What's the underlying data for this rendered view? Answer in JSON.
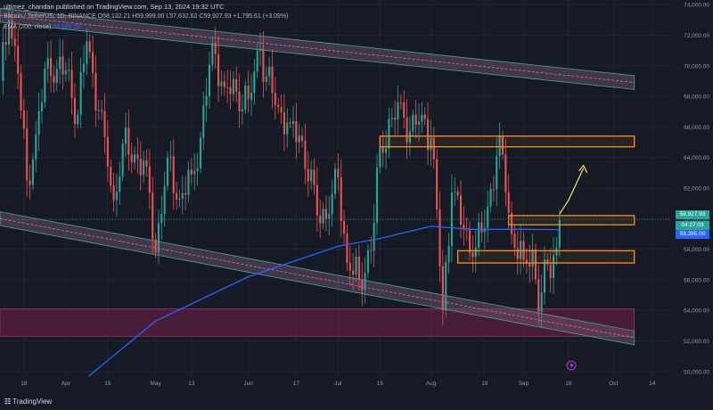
{
  "header": {
    "publisher_line": "ultimez_chandan published on TradingView.com, Sep 13, 2024 19:32 UTC",
    "symbol_line": "Bitcoin / TetherUS, 1D, BINANCE",
    "ohlc": "O58,132.21 H59,999.00 L57,632.62 C59,927.93 +1,795.61 (+3.09%)",
    "ema_label": "EMA (200, close)",
    "ema_value": "59,285.00"
  },
  "logo_text": "TradingView",
  "price_tags": {
    "last_price": "59,927.93",
    "countdown": "04:27:03",
    "ema": "59,285.00"
  },
  "colors": {
    "background": "#161a25",
    "up": "#26a69a",
    "down": "#ef5350",
    "ema": "#2962ff",
    "zone_box": "#f7931a",
    "demand_zone": "#7b1f4a",
    "channel_fill": "#6b4f6a",
    "channel_edge": "#3fae8f",
    "projection_arrow": "#f5e663"
  },
  "icons": [
    "lightning-icon",
    "tradingview-logo-icon"
  ],
  "chart_data": {
    "type": "candlestick",
    "title": "",
    "y_axis_ticks": [
      74000,
      72000,
      70000,
      68000,
      66000,
      64000,
      62000,
      60000,
      58000,
      56000,
      54000,
      52000,
      50000
    ],
    "y_axis_tick_labels": [
      "74,000.00",
      "72,000.00",
      "70,000.00",
      "68,000.00",
      "66,000.00",
      "64,000.00",
      "62,000.00",
      "60,000.00",
      "58,000.00",
      "56,000.00",
      "54,000.00",
      "52,000.00",
      "50,000.00"
    ],
    "ylim": [
      49700,
      74300
    ],
    "x_axis_ticks": [
      {
        "label": "18",
        "date": "2024-03-18"
      },
      {
        "label": "Apr",
        "date": "2024-04-01"
      },
      {
        "label": "15",
        "date": "2024-04-15"
      },
      {
        "label": "May",
        "date": "2024-05-01"
      },
      {
        "label": "13",
        "date": "2024-05-13"
      },
      {
        "label": "Jun",
        "date": "2024-06-01"
      },
      {
        "label": "17",
        "date": "2024-06-17"
      },
      {
        "label": "Jul",
        "date": "2024-07-01"
      },
      {
        "label": "15",
        "date": "2024-07-15"
      },
      {
        "label": "Aug",
        "date": "2024-08-01"
      },
      {
        "label": "19",
        "date": "2024-08-19"
      },
      {
        "label": "Sep",
        "date": "2024-09-01"
      },
      {
        "label": "16",
        "date": "2024-09-16"
      },
      {
        "label": "Oct",
        "date": "2024-10-01"
      },
      {
        "label": "14",
        "date": "2024-10-14"
      }
    ],
    "xlim": [
      "2024-03-10",
      "2024-10-20"
    ],
    "closes": [
      {
        "date": "2024-03-10",
        "close": 69000
      },
      {
        "date": "2024-03-13",
        "close": 73000
      },
      {
        "date": "2024-03-16",
        "close": 69500
      },
      {
        "date": "2024-03-19",
        "close": 62500
      },
      {
        "date": "2024-03-22",
        "close": 65500
      },
      {
        "date": "2024-03-26",
        "close": 70500
      },
      {
        "date": "2024-03-29",
        "close": 69800
      },
      {
        "date": "2024-04-01",
        "close": 69700
      },
      {
        "date": "2024-04-05",
        "close": 66800
      },
      {
        "date": "2024-04-08",
        "close": 71600
      },
      {
        "date": "2024-04-12",
        "close": 67100
      },
      {
        "date": "2024-04-15",
        "close": 63400
      },
      {
        "date": "2024-04-17",
        "close": 61200
      },
      {
        "date": "2024-04-20",
        "close": 64900
      },
      {
        "date": "2024-04-24",
        "close": 64200
      },
      {
        "date": "2024-04-28",
        "close": 63400
      },
      {
        "date": "2024-05-01",
        "close": 57800
      },
      {
        "date": "2024-05-05",
        "close": 64000
      },
      {
        "date": "2024-05-09",
        "close": 61300
      },
      {
        "date": "2024-05-13",
        "close": 62900
      },
      {
        "date": "2024-05-16",
        "close": 65300
      },
      {
        "date": "2024-05-20",
        "close": 71500
      },
      {
        "date": "2024-05-24",
        "close": 68600
      },
      {
        "date": "2024-05-28",
        "close": 68300
      },
      {
        "date": "2024-06-01",
        "close": 67800
      },
      {
        "date": "2024-06-05",
        "close": 71100
      },
      {
        "date": "2024-06-07",
        "close": 69300
      },
      {
        "date": "2024-06-11",
        "close": 67300
      },
      {
        "date": "2024-06-15",
        "close": 66200
      },
      {
        "date": "2024-06-19",
        "close": 65100
      },
      {
        "date": "2024-06-24",
        "close": 60200
      },
      {
        "date": "2024-06-28",
        "close": 60300
      },
      {
        "date": "2024-07-01",
        "close": 62700
      },
      {
        "date": "2024-07-04",
        "close": 57100
      },
      {
        "date": "2024-07-05",
        "close": 56600
      },
      {
        "date": "2024-07-08",
        "close": 56000
      },
      {
        "date": "2024-07-12",
        "close": 57900
      },
      {
        "date": "2024-07-15",
        "close": 64700
      },
      {
        "date": "2024-07-19",
        "close": 66600
      },
      {
        "date": "2024-07-22",
        "close": 67600
      },
      {
        "date": "2024-07-25",
        "close": 65700
      },
      {
        "date": "2024-07-29",
        "close": 66800
      },
      {
        "date": "2024-08-01",
        "close": 65300
      },
      {
        "date": "2024-08-03",
        "close": 60600
      },
      {
        "date": "2024-08-05",
        "close": 54000
      },
      {
        "date": "2024-08-08",
        "close": 61700
      },
      {
        "date": "2024-08-12",
        "close": 59300
      },
      {
        "date": "2024-08-15",
        "close": 57500
      },
      {
        "date": "2024-08-19",
        "close": 59400
      },
      {
        "date": "2024-08-23",
        "close": 64100
      },
      {
        "date": "2024-08-25",
        "close": 64200
      },
      {
        "date": "2024-08-28",
        "close": 59000
      },
      {
        "date": "2024-09-01",
        "close": 57300
      },
      {
        "date": "2024-09-04",
        "close": 58000
      },
      {
        "date": "2024-09-06",
        "close": 53900
      },
      {
        "date": "2024-09-09",
        "close": 57000
      },
      {
        "date": "2024-09-11",
        "close": 57600
      },
      {
        "date": "2024-09-12",
        "close": 58100
      },
      {
        "date": "2024-09-13",
        "close": 59928
      }
    ],
    "ema_200": [
      {
        "date": "2024-04-08",
        "value": 49600
      },
      {
        "date": "2024-05-01",
        "value": 53300
      },
      {
        "date": "2024-06-01",
        "value": 56200
      },
      {
        "date": "2024-07-01",
        "value": 58200
      },
      {
        "date": "2024-07-15",
        "value": 58700
      },
      {
        "date": "2024-08-01",
        "value": 59500
      },
      {
        "date": "2024-08-15",
        "value": 59300
      },
      {
        "date": "2024-09-01",
        "value": 59300
      },
      {
        "date": "2024-09-13",
        "value": 59285
      }
    ],
    "channel_upper": [
      {
        "date": "2024-03-10",
        "value": 73300
      },
      {
        "date": "2024-10-08",
        "value": 68900
      }
    ],
    "channel_lower": [
      {
        "date": "2024-03-10",
        "value": 60000
      },
      {
        "date": "2024-10-08",
        "value": 52200
      }
    ],
    "zones": [
      {
        "type": "resistance",
        "date_from": "2024-07-15",
        "date_to": "2024-10-08",
        "low": 64700,
        "high": 65400
      },
      {
        "type": "resistance",
        "date_from": "2024-08-27",
        "date_to": "2024-10-08",
        "low": 59600,
        "high": 60200
      },
      {
        "type": "support",
        "date_from": "2024-08-10",
        "date_to": "2024-10-08",
        "low": 57100,
        "high": 57900
      },
      {
        "type": "demand",
        "date_from": "2024-03-10",
        "date_to": "2024-10-08",
        "low": 52300,
        "high": 54100
      }
    ],
    "projection": [
      {
        "date": "2024-09-13",
        "value": 60300
      },
      {
        "date": "2024-09-16",
        "value": 61200
      },
      {
        "date": "2024-09-21",
        "value": 63300
      }
    ],
    "last_price": 59927.93,
    "legend": "none",
    "grid": true
  }
}
